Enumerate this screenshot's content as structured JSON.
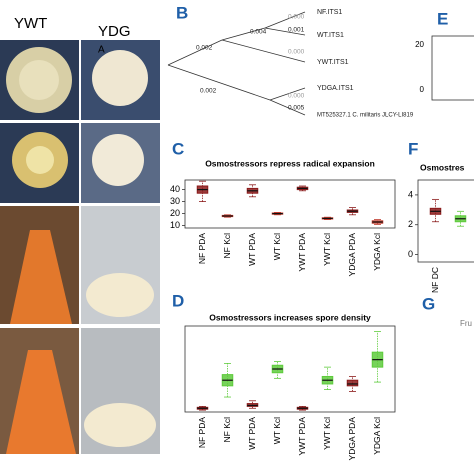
{
  "photo_labels": {
    "left": "YWT",
    "right": "YDG",
    "overlay": "A"
  },
  "panel_labels": {
    "b": "B",
    "c": "C",
    "d": "D",
    "e": "E",
    "f": "F",
    "g": "G"
  },
  "tree": {
    "leaves": [
      "NF.ITS1",
      "WT.ITS1",
      "YWT.ITS1",
      "YDGA.ITS1",
      "MT525327.1 C. militaris JLCY-LI819"
    ],
    "branch_labels": [
      "0.002",
      "0.004",
      "0.000",
      "0.001",
      "0.000",
      "0.002",
      "0.000",
      "0.005"
    ]
  },
  "panel_e": {
    "tick_labels": [
      "20",
      "0"
    ]
  },
  "panel_g": {
    "text": "Fru"
  },
  "chart_data": [
    {
      "type": "box",
      "title": "Osmostressors repress radical expansion",
      "categories": [
        "NF PDA",
        "NF Kcl",
        "WT PDA",
        "WT Kcl",
        "YWT PDA",
        "YWT Kcl",
        "YDGA PDA",
        "YDGA Kcl"
      ],
      "colors": [
        "#8b1a1a",
        "#c0392b",
        "#8b1a1a",
        "#c0392b",
        "#8b1a1a",
        "#c0392b",
        "#8b1a1a",
        "#c0392b"
      ],
      "median": [
        40,
        18,
        39,
        20,
        41,
        16,
        22,
        13
      ],
      "q1": [
        37,
        17.5,
        37,
        19.5,
        40,
        15.5,
        21,
        12
      ],
      "q3": [
        43,
        18.5,
        41,
        20.5,
        42,
        16.5,
        23,
        14
      ],
      "whisker_low": [
        30,
        17,
        34,
        19,
        39,
        15,
        19,
        11
      ],
      "whisker_high": [
        47,
        19,
        44,
        21,
        43,
        17,
        25,
        15
      ],
      "ylim": [
        8,
        48
      ],
      "yticks": [
        10,
        20,
        30,
        40
      ]
    },
    {
      "type": "box",
      "title": "Osmostressors increases spore density",
      "categories": [
        "NF PDA",
        "NF Kcl",
        "WT PDA",
        "WT Kcl",
        "YWT PDA",
        "YWT Kcl",
        "YDGA PDA",
        "YDGA Kcl"
      ],
      "colors": [
        "#8b1a1a",
        "#5ecb3c",
        "#8b1a1a",
        "#5ecb3c",
        "#8b1a1a",
        "#5ecb3c",
        "#8b1a1a",
        "#5ecb3c"
      ],
      "median": [
        2,
        17,
        3.5,
        23,
        2,
        17,
        15,
        28
      ],
      "q1": [
        1.5,
        14,
        3,
        21,
        1.5,
        15,
        14,
        24
      ],
      "q3": [
        2.5,
        20,
        4.5,
        25,
        2.5,
        19,
        17,
        32
      ],
      "whisker_low": [
        1,
        8,
        2,
        18,
        1,
        12,
        11,
        16
      ],
      "whisker_high": [
        3,
        26,
        6,
        27,
        3,
        24,
        19,
        43
      ],
      "ylim": [
        0,
        46
      ],
      "yticks": []
    },
    {
      "type": "box",
      "title": "Osmostres",
      "categories": [
        "NF DC",
        null
      ],
      "colors": [
        "#8b1a1a",
        "#5ecb3c"
      ],
      "median": [
        2.9,
        2.4
      ],
      "q1": [
        2.7,
        2.2
      ],
      "q3": [
        3.1,
        2.6
      ],
      "whisker_low": [
        2.2,
        1.9
      ],
      "whisker_high": [
        3.7,
        2.9
      ],
      "ylim": [
        -0.5,
        5
      ],
      "yticks": [
        0,
        2,
        4
      ]
    }
  ]
}
